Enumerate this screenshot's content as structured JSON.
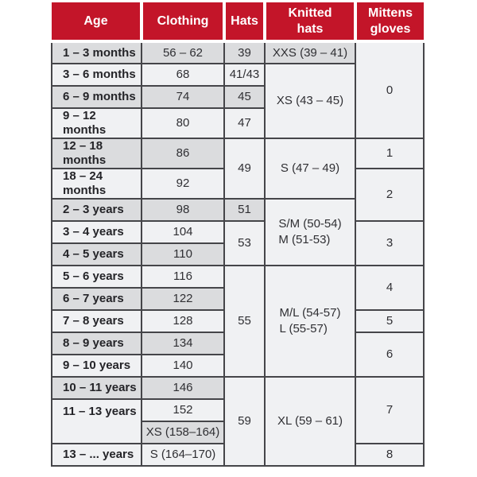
{
  "chart_data": {
    "type": "table",
    "columns": [
      {
        "id": "age",
        "label": "Age"
      },
      {
        "id": "clothing",
        "label": "Clothing"
      },
      {
        "id": "hats",
        "label": "Hats"
      },
      {
        "id": "knitted_hats",
        "label": "Knitted\nhats"
      },
      {
        "id": "mittens_gloves",
        "label": "Mittens\ngloves"
      }
    ],
    "rows": [
      {
        "age": "1 – 3 months",
        "clothing": "56 – 62",
        "hats": "39",
        "knitted": "XXS (39 – 41)",
        "mittens": "0"
      },
      {
        "age": "3 – 6 months",
        "clothing": "68",
        "hats": "41/43",
        "knitted": "XS (43 – 45)"
      },
      {
        "age": "6 – 9 months",
        "clothing": "74",
        "hats": "45"
      },
      {
        "age": "9 – 12 months",
        "clothing": "80",
        "hats": "47"
      },
      {
        "age": "12 – 18 months",
        "clothing": "86",
        "hats": "49",
        "knitted": "S (47 – 49)",
        "mittens": "1"
      },
      {
        "age": "18 – 24 months",
        "clothing": "92",
        "mittens": "2"
      },
      {
        "age": "2 – 3 years",
        "clothing": "98",
        "hats": "51",
        "knitted": "S/M (50-54)\nM (51-53)"
      },
      {
        "age": "3 – 4 years",
        "clothing": "104",
        "hats": "53",
        "mittens": "3"
      },
      {
        "age": "4 – 5 years",
        "clothing": "110"
      },
      {
        "age": "5 – 6 years",
        "clothing": "116",
        "hats": "55",
        "knitted": "M/L (54-57)\nL (55-57)",
        "mittens": "4"
      },
      {
        "age": "6 – 7 years",
        "clothing": "122"
      },
      {
        "age": "7 – 8 years",
        "clothing": "128",
        "mittens": "5"
      },
      {
        "age": "8 – 9 years",
        "clothing": "134",
        "mittens": "6"
      },
      {
        "age": "9 – 10 years",
        "clothing": "140"
      },
      {
        "age": "10 – 11 years",
        "clothing": "146",
        "hats": "59",
        "knitted": "XL (59 – 61)",
        "mittens": "7"
      },
      {
        "age": "11 – 13 years",
        "clothing": "152"
      },
      {
        "clothing": "XS (158–164)"
      },
      {
        "age": "13 – ... years",
        "clothing": "S (164–170)",
        "mittens": "8"
      }
    ]
  },
  "colors": {
    "header_bg": "#C31529",
    "header_text": "#FFFFFF",
    "shaded_cell": "#DBDCDE",
    "light_cell": "#F0F1F3",
    "border": "#454549",
    "text": "#2F2F33"
  }
}
